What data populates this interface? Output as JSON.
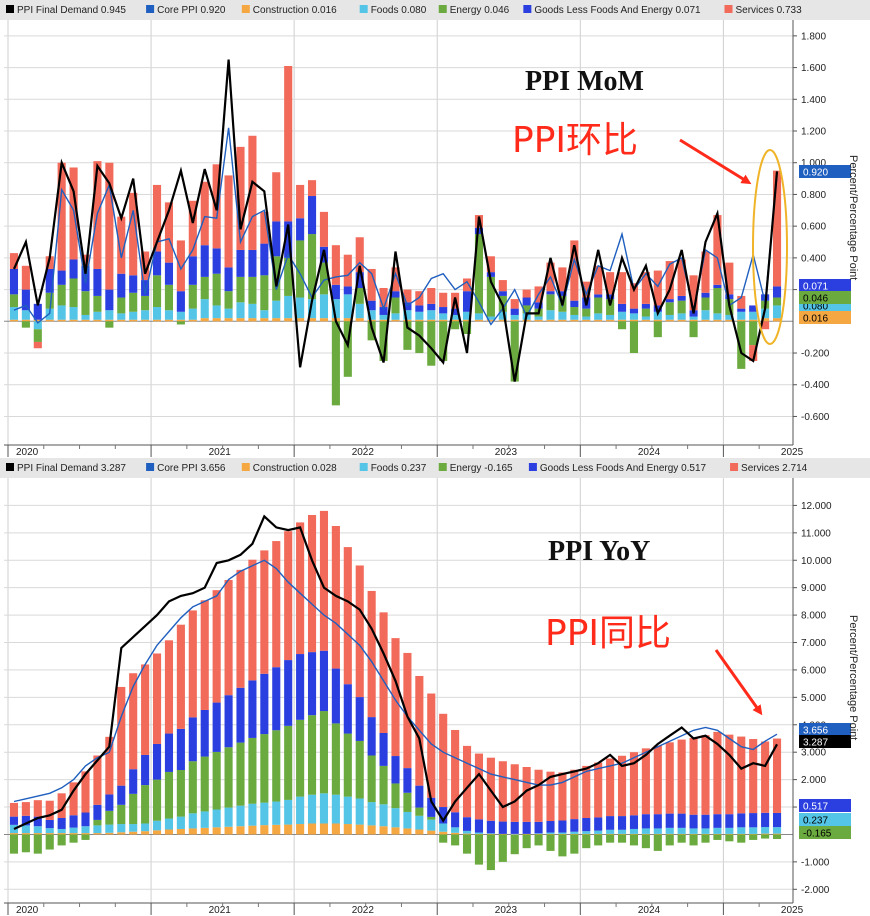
{
  "colors": {
    "final": "#000000",
    "core": "#1f5fbf",
    "construction": "#f5a742",
    "foods": "#54c5e6",
    "energy": "#6aaa3f",
    "goods": "#2b3fe0",
    "services": "#f26a5a",
    "annotation": "#ff2a1a",
    "ellipse": "#f0b429"
  },
  "chart_data": [
    {
      "type": "bar",
      "stacked": true,
      "title": "PPI MoM",
      "annotation": "PPI环比",
      "ylabel": "Percent/Percentage Point",
      "ylim": [
        -0.78,
        1.9
      ],
      "yticks": [
        -0.6,
        -0.4,
        -0.2,
        0.2,
        0.4,
        0.6,
        0.8,
        1.0,
        1.2,
        1.4,
        1.6,
        1.8
      ],
      "ytick_labels": [
        "-0.600",
        "-0.400",
        "-0.200",
        "0.200",
        "0.400",
        "0.600",
        "0.800",
        "1.000",
        "1.200",
        "1.400",
        "1.600",
        "1.800"
      ],
      "x_start": "2020-01",
      "x_labels": [
        "2020",
        "2021",
        "2022",
        "2023",
        "2024",
        "2025"
      ],
      "legend": [
        {
          "key": "final",
          "label": "PPI Final Demand",
          "value": "0.945"
        },
        {
          "key": "core",
          "label": "Core PPI",
          "value": "0.920"
        },
        {
          "key": "construction",
          "label": "Construction",
          "value": "0.016"
        },
        {
          "key": "foods",
          "label": "Foods",
          "value": "0.080"
        },
        {
          "key": "energy",
          "label": "Energy",
          "value": "0.046"
        },
        {
          "key": "goods",
          "label": "Goods Less Foods And Energy",
          "value": "0.071"
        },
        {
          "key": "services",
          "label": "Services",
          "value": "0.733"
        }
      ],
      "badges": [
        {
          "value": "0.920",
          "key": "core"
        },
        {
          "value": "0.071",
          "key": "goods"
        },
        {
          "value": "0.080",
          "key": "foods"
        },
        {
          "value": "0.046",
          "key": "energy"
        },
        {
          "value": "0.016",
          "key": "construction"
        }
      ],
      "series": {
        "construction": [
          0.01,
          0.01,
          0.01,
          0.01,
          0.01,
          0.01,
          0.01,
          0.01,
          0.01,
          0.01,
          0.01,
          0.01,
          0.01,
          0.01,
          0.01,
          0.01,
          0.02,
          0.02,
          0.02,
          0.02,
          0.02,
          0.02,
          0.02,
          0.02,
          0.02,
          0.02,
          0.02,
          0.02,
          0.02,
          0.02,
          0.01,
          0.01,
          0.01,
          0.01,
          0.01,
          0.01,
          0.01,
          0.01,
          0.01,
          0.01,
          0.01,
          0.01,
          0.01,
          0.01,
          0.01,
          0.01,
          0.01,
          0.01,
          0.01,
          0.01,
          0.01,
          0.01,
          0.01,
          0.01,
          0.01,
          0.01,
          0.01,
          0.01,
          0.01,
          0.01,
          0.01,
          0.01,
          0.01,
          0.02,
          0.02
        ],
        "foods": [
          0.08,
          0.06,
          -0.05,
          0.07,
          0.09,
          0.08,
          0.03,
          0.05,
          0.06,
          0.04,
          0.05,
          0.06,
          0.08,
          0.06,
          0.05,
          0.07,
          0.12,
          0.08,
          0.06,
          0.1,
          0.09,
          0.05,
          0.11,
          0.14,
          0.13,
          0.12,
          0.15,
          0.12,
          0.15,
          0.09,
          0.06,
          0.03,
          0.04,
          0.06,
          0.05,
          0.06,
          0.04,
          0.03,
          0.05,
          0.04,
          0.02,
          0.05,
          0.03,
          0.04,
          0.02,
          0.06,
          0.05,
          0.03,
          0.02,
          0.04,
          0.03,
          0.05,
          0.04,
          0.02,
          0.05,
          0.03,
          0.04,
          0.02,
          0.06,
          0.04,
          0.03,
          0.05,
          0.05,
          0.06,
          0.08
        ],
        "energy": [
          0.08,
          -0.04,
          -0.08,
          0.1,
          0.13,
          0.18,
          0.15,
          0.1,
          -0.04,
          0.1,
          0.12,
          0.09,
          0.2,
          0.16,
          -0.02,
          0.15,
          0.14,
          0.2,
          0.11,
          0.16,
          0.17,
          0.22,
          0.28,
          0.24,
          0.36,
          0.41,
          0.2,
          -0.53,
          -0.35,
          0.1,
          -0.12,
          -0.25,
          0.1,
          -0.18,
          -0.2,
          -0.28,
          -0.25,
          -0.05,
          -0.08,
          0.5,
          0.25,
          0.1,
          -0.38,
          0.05,
          0.05,
          0.1,
          0.1,
          0.05,
          0.05,
          0.1,
          0.1,
          -0.05,
          -0.2,
          0.05,
          -0.1,
          0.08,
          0.08,
          -0.1,
          0.08,
          0.16,
          0.1,
          -0.3,
          -0.15,
          0.05,
          0.05
        ],
        "goods": [
          0.16,
          0.13,
          0.1,
          0.15,
          0.09,
          0.12,
          0.16,
          0.17,
          0.13,
          0.15,
          0.11,
          0.1,
          0.15,
          0.14,
          0.13,
          0.18,
          0.2,
          0.16,
          0.15,
          0.17,
          0.17,
          0.2,
          0.22,
          0.23,
          0.14,
          0.24,
          0.1,
          0.09,
          0.05,
          0.1,
          0.06,
          0.05,
          0.04,
          0.05,
          0.04,
          0.04,
          0.04,
          0.04,
          0.13,
          0.04,
          0.03,
          0.03,
          0.04,
          0.05,
          0.04,
          0.02,
          0.03,
          0.04,
          0.07,
          0.02,
          0.03,
          0.05,
          0.03,
          0.03,
          0.04,
          0.02,
          0.03,
          0.04,
          0.03,
          0.02,
          0.03,
          0.02,
          0.04,
          0.04,
          0.07
        ],
        "services": [
          0.1,
          0.15,
          -0.04,
          0.08,
          0.68,
          0.58,
          0.07,
          0.68,
          0.8,
          0.36,
          0.52,
          0.18,
          0.42,
          0.38,
          0.32,
          0.35,
          0.4,
          0.53,
          0.58,
          0.65,
          0.72,
          0.2,
          0.31,
          0.98,
          0.21,
          0.1,
          0.22,
          0.25,
          0.2,
          0.22,
          0.2,
          0.12,
          0.15,
          0.08,
          0.09,
          0.1,
          0.09,
          0.1,
          0.08,
          0.08,
          0.1,
          0.07,
          0.06,
          0.05,
          0.1,
          0.18,
          0.15,
          0.38,
          0.1,
          0.18,
          0.14,
          0.2,
          0.16,
          0.2,
          0.22,
          0.24,
          0.23,
          0.22,
          0.26,
          0.44,
          0.2,
          0.08,
          -0.1,
          -0.05,
          0.73
        ],
        "final": [
          0.33,
          0.5,
          0.1,
          0.4,
          1.0,
          0.82,
          0.3,
          0.98,
          0.87,
          0.65,
          0.9,
          0.3,
          0.5,
          0.7,
          0.95,
          0.62,
          0.96,
          0.7,
          1.65,
          0.58,
          0.88,
          0.82,
          0.22,
          0.61,
          -0.29,
          0.13,
          0.45,
          0.0,
          -0.15,
          0.35,
          -0.04,
          -0.26,
          0.44,
          -0.04,
          -0.09,
          -0.17,
          -0.26,
          0.15,
          -0.2,
          0.66,
          0.25,
          0.1,
          -0.38,
          0.05,
          0.05,
          0.4,
          0.1,
          0.48,
          0.1,
          0.45,
          0.1,
          0.4,
          0.2,
          0.35,
          0.05,
          0.2,
          0.45,
          0.05,
          0.5,
          0.68,
          0.1,
          -0.2,
          -0.25,
          0.08,
          0.945
        ],
        "core": [
          0.07,
          0.1,
          -0.01,
          0.05,
          0.83,
          0.7,
          0.24,
          0.68,
          0.86,
          0.4,
          0.7,
          0.17,
          0.5,
          0.52,
          0.33,
          0.45,
          0.66,
          0.65,
          1.22,
          0.5,
          0.66,
          0.7,
          0.2,
          0.42,
          0.3,
          0.15,
          0.26,
          0.28,
          0.29,
          0.37,
          0.3,
          0.08,
          0.3,
          0.1,
          0.15,
          0.27,
          0.3,
          0.2,
          0.25,
          0.12,
          -0.02,
          0.08,
          0.2,
          0.03,
          0.17,
          0.28,
          0.1,
          0.39,
          0.17,
          0.35,
          0.32,
          0.55,
          0.2,
          0.3,
          0.22,
          0.36,
          0.4,
          0.07,
          0.45,
          0.4,
          0.1,
          0.15,
          0.42,
          0.12,
          0.92
        ]
      }
    },
    {
      "type": "bar",
      "stacked": true,
      "title": "PPI YoY",
      "annotation": "PPI同比",
      "ylabel": "Percent/Percentage Point",
      "ylim": [
        -2.5,
        13.0
      ],
      "yticks": [
        -2,
        -1,
        1,
        2,
        3,
        4,
        5,
        6,
        7,
        8,
        9,
        10,
        11,
        12
      ],
      "ytick_labels": [
        "-2.000",
        "-1.000",
        "1.000",
        "2.000",
        "3.000",
        "4.000",
        "5.000",
        "6.000",
        "7.000",
        "8.000",
        "9.000",
        "10.000",
        "11.000",
        "12.000"
      ],
      "x_start": "2020-01",
      "x_labels": [
        "2020",
        "2021",
        "2022",
        "2023",
        "2024",
        "2025"
      ],
      "legend": [
        {
          "key": "final",
          "label": "PPI Final Demand",
          "value": "3.287"
        },
        {
          "key": "core",
          "label": "Core PPI",
          "value": "3.656"
        },
        {
          "key": "construction",
          "label": "Construction",
          "value": "0.028"
        },
        {
          "key": "foods",
          "label": "Foods",
          "value": "0.237"
        },
        {
          "key": "energy",
          "label": "Energy",
          "value": "-0.165"
        },
        {
          "key": "goods",
          "label": "Goods Less Foods And Energy",
          "value": "0.517"
        },
        {
          "key": "services",
          "label": "Services",
          "value": "2.714"
        }
      ],
      "badges": [
        {
          "value": "3.656",
          "key": "core"
        },
        {
          "value": "3.287",
          "key": "final"
        },
        {
          "value": "0.517",
          "key": "goods"
        },
        {
          "value": "0.237",
          "key": "foods"
        },
        {
          "value": "-0.165",
          "key": "energy"
        }
      ],
      "series": {
        "construction": [
          0.05,
          0.05,
          0.05,
          0.05,
          0.05,
          0.05,
          0.05,
          0.05,
          0.06,
          0.08,
          0.1,
          0.12,
          0.15,
          0.18,
          0.2,
          0.22,
          0.24,
          0.26,
          0.28,
          0.3,
          0.32,
          0.34,
          0.35,
          0.36,
          0.38,
          0.4,
          0.4,
          0.4,
          0.38,
          0.36,
          0.33,
          0.3,
          0.26,
          0.22,
          0.18,
          0.14,
          0.1,
          0.06,
          0.03,
          0.02,
          0.02,
          0.02,
          0.02,
          0.02,
          0.02,
          0.02,
          0.02,
          0.02,
          0.02,
          0.02,
          0.02,
          0.02,
          0.02,
          0.02,
          0.02,
          0.02,
          0.02,
          0.02,
          0.02,
          0.02,
          0.02,
          0.02,
          0.02,
          0.03,
          0.03
        ],
        "foods": [
          0.3,
          0.28,
          0.25,
          0.18,
          0.15,
          0.2,
          0.25,
          0.28,
          0.3,
          0.3,
          0.28,
          0.28,
          0.35,
          0.4,
          0.45,
          0.55,
          0.6,
          0.65,
          0.7,
          0.75,
          0.8,
          0.82,
          0.85,
          0.9,
          1.0,
          1.05,
          1.1,
          1.05,
          1.0,
          0.95,
          0.85,
          0.8,
          0.7,
          0.6,
          0.5,
          0.4,
          0.3,
          0.2,
          0.1,
          0.05,
          0.02,
          0.0,
          -0.02,
          0.0,
          0.02,
          0.05,
          0.05,
          0.08,
          0.1,
          0.12,
          0.15,
          0.15,
          0.18,
          0.2,
          0.2,
          0.22,
          0.22,
          0.2,
          0.2,
          0.22,
          0.22,
          0.24,
          0.24,
          0.24,
          0.237
        ],
        "energy": [
          -0.7,
          -0.65,
          -0.7,
          -0.55,
          -0.4,
          -0.3,
          -0.2,
          0.2,
          0.5,
          0.7,
          1.1,
          1.4,
          1.5,
          1.7,
          1.7,
          1.9,
          2.0,
          2.1,
          2.2,
          2.3,
          2.4,
          2.5,
          2.6,
          2.7,
          2.8,
          2.9,
          3.0,
          2.6,
          2.3,
          2.1,
          1.7,
          1.4,
          0.9,
          0.7,
          0.3,
          0.1,
          -0.3,
          -0.4,
          -0.7,
          -1.1,
          -1.3,
          -1.0,
          -0.7,
          -0.5,
          -0.4,
          -0.6,
          -0.8,
          -0.7,
          -0.5,
          -0.4,
          -0.3,
          -0.3,
          -0.4,
          -0.5,
          -0.6,
          -0.4,
          -0.3,
          -0.4,
          -0.3,
          -0.2,
          -0.25,
          -0.3,
          -0.2,
          -0.15,
          -0.165
        ],
        "goods": [
          0.3,
          0.35,
          0.35,
          0.3,
          0.4,
          0.45,
          0.5,
          0.55,
          0.6,
          0.7,
          0.9,
          1.1,
          1.3,
          1.4,
          1.5,
          1.6,
          1.7,
          1.8,
          1.9,
          2.0,
          2.1,
          2.2,
          2.3,
          2.4,
          2.4,
          2.3,
          2.2,
          2.0,
          1.8,
          1.6,
          1.4,
          1.2,
          1.0,
          0.9,
          0.8,
          0.7,
          0.6,
          0.55,
          0.5,
          0.48,
          0.46,
          0.45,
          0.44,
          0.44,
          0.42,
          0.42,
          0.44,
          0.46,
          0.48,
          0.48,
          0.5,
          0.5,
          0.5,
          0.52,
          0.52,
          0.52,
          0.52,
          0.5,
          0.5,
          0.5,
          0.5,
          0.51,
          0.52,
          0.52,
          0.517
        ],
        "services": [
          0.5,
          0.5,
          0.6,
          0.7,
          0.9,
          1.2,
          1.5,
          1.8,
          2.1,
          3.6,
          3.5,
          3.3,
          3.3,
          3.4,
          3.8,
          3.9,
          4.0,
          4.1,
          4.2,
          4.3,
          4.4,
          4.5,
          4.6,
          4.7,
          4.8,
          5.0,
          5.1,
          5.2,
          5.0,
          4.8,
          4.6,
          4.4,
          4.3,
          4.2,
          4.0,
          3.8,
          3.4,
          3.0,
          2.6,
          2.4,
          2.3,
          2.2,
          2.1,
          2.0,
          1.9,
          1.8,
          1.75,
          1.8,
          1.9,
          2.0,
          2.1,
          2.2,
          2.3,
          2.4,
          2.5,
          2.6,
          2.7,
          2.8,
          2.9,
          3.0,
          2.9,
          2.8,
          2.7,
          2.6,
          2.714
        ],
        "final": [
          0.2,
          0.4,
          0.6,
          0.7,
          0.9,
          1.6,
          2.2,
          2.7,
          3.2,
          6.8,
          7.2,
          7.6,
          8.0,
          8.5,
          8.7,
          8.8,
          9.0,
          9.9,
          10.0,
          10.2,
          10.6,
          11.6,
          11.2,
          11.1,
          11.2,
          10.0,
          9.0,
          8.7,
          8.5,
          8.2,
          7.5,
          6.6,
          5.6,
          4.3,
          3.5,
          1.2,
          0.5,
          1.2,
          1.7,
          2.2,
          1.6,
          1.0,
          1.2,
          1.6,
          1.8,
          2.1,
          2.2,
          2.3,
          2.4,
          2.6,
          2.9,
          2.5,
          2.6,
          2.9,
          3.3,
          3.6,
          3.9,
          3.5,
          3.6,
          3.3,
          2.9,
          2.4,
          2.6,
          2.5,
          3.287
        ],
        "core": [
          1.2,
          1.3,
          1.4,
          1.5,
          1.7,
          2.0,
          2.5,
          2.8,
          3.0,
          4.3,
          5.4,
          6.2,
          6.9,
          7.4,
          7.9,
          8.3,
          8.5,
          8.7,
          9.3,
          9.6,
          9.8,
          10.0,
          9.7,
          9.2,
          8.8,
          8.4,
          8.0,
          7.7,
          7.3,
          6.9,
          6.3,
          5.6,
          4.9,
          4.3,
          3.8,
          3.3,
          3.0,
          2.8,
          2.6,
          2.4,
          2.2,
          2.1,
          2.0,
          1.9,
          1.8,
          1.8,
          1.9,
          2.1,
          2.3,
          2.4,
          2.5,
          2.6,
          2.8,
          3.0,
          3.2,
          3.4,
          3.6,
          3.8,
          3.9,
          3.8,
          3.5,
          3.2,
          3.1,
          3.4,
          3.656
        ]
      }
    }
  ]
}
